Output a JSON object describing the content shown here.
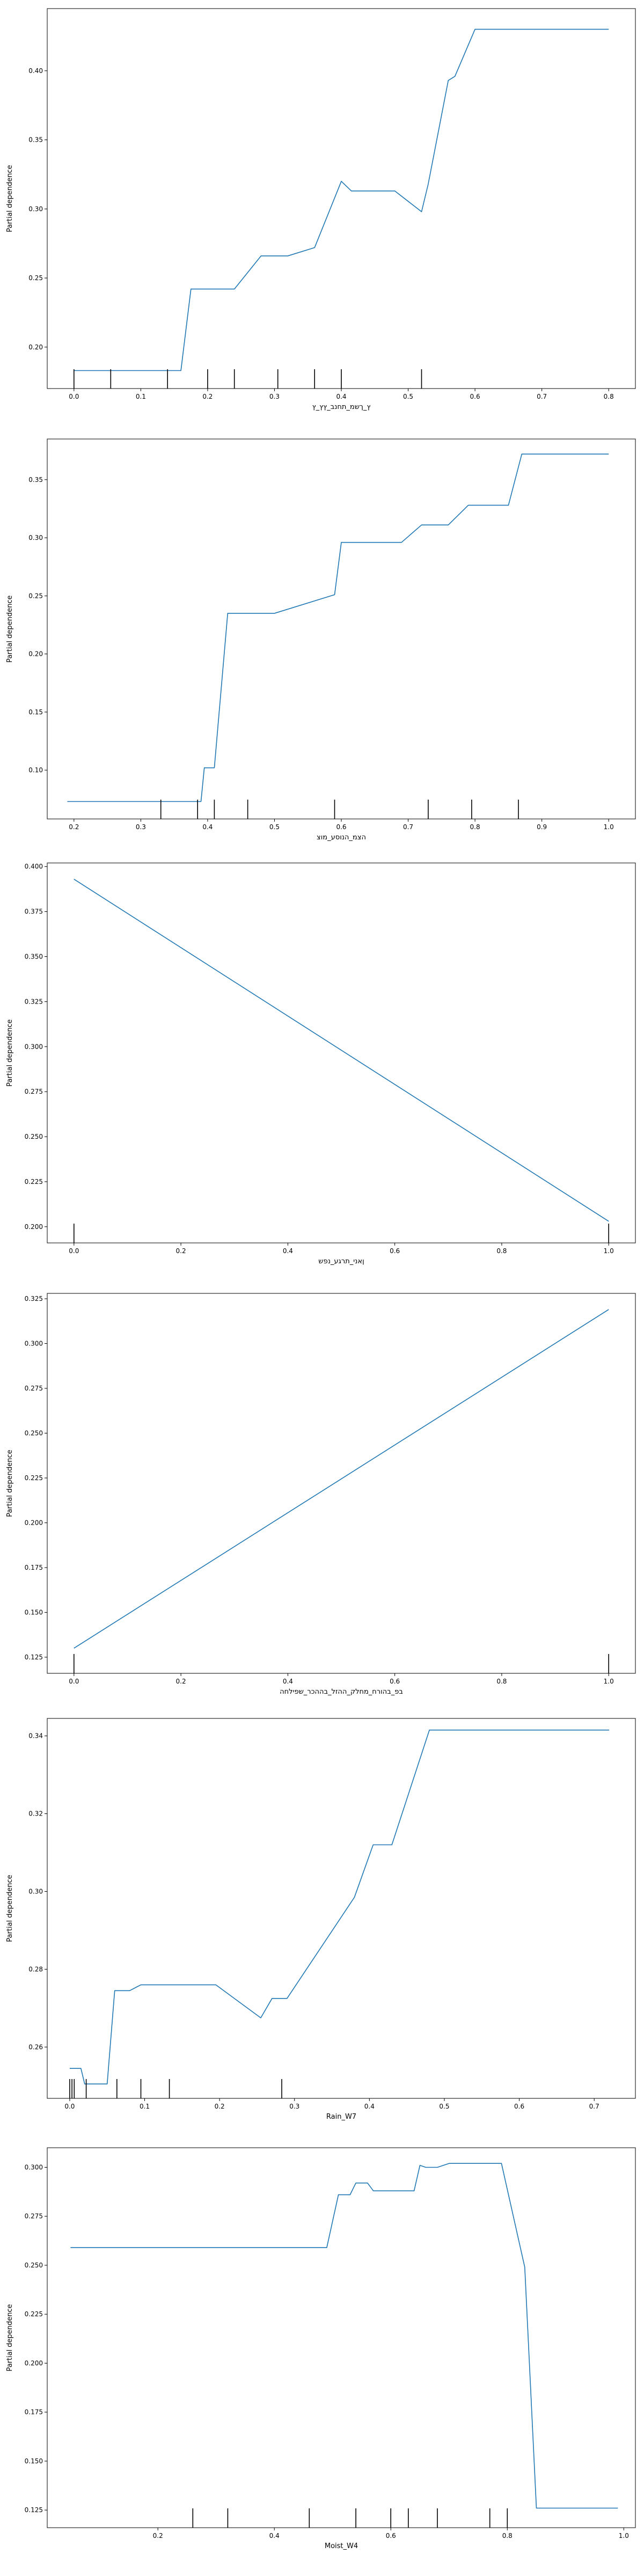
{
  "colors": {
    "line": "#1f77b4",
    "rug": "#000000",
    "frame": "#000000",
    "background": "#ffffff"
  },
  "chart_data": [
    {
      "type": "line",
      "xlabel": "ץ_ךשמ_תחנב_ץץ_ץ",
      "ylabel": "Partial dependence",
      "xlim": [
        -0.04,
        0.84
      ],
      "ylim": [
        0.17,
        0.445
      ],
      "xticks": [
        0.0,
        0.1,
        0.2,
        0.3,
        0.4,
        0.5,
        0.6,
        0.7,
        0.8
      ],
      "xtick_labels": [
        "0.0",
        "0.1",
        "0.2",
        "0.3",
        "0.4",
        "0.5",
        "0.6",
        "0.7",
        "0.8"
      ],
      "yticks": [
        0.2,
        0.25,
        0.3,
        0.35,
        0.4
      ],
      "ytick_labels": [
        "0.20",
        "0.25",
        "0.30",
        "0.35",
        "0.40"
      ],
      "x": [
        0.0,
        0.16,
        0.175,
        0.24,
        0.28,
        0.32,
        0.36,
        0.4,
        0.415,
        0.48,
        0.52,
        0.53,
        0.56,
        0.57,
        0.6,
        0.8
      ],
      "y": [
        0.183,
        0.183,
        0.242,
        0.242,
        0.266,
        0.266,
        0.272,
        0.32,
        0.313,
        0.313,
        0.298,
        0.318,
        0.393,
        0.396,
        0.43,
        0.43
      ],
      "rug": [
        0.0,
        0.055,
        0.14,
        0.2,
        0.24,
        0.305,
        0.36,
        0.4,
        0.52
      ]
    },
    {
      "type": "line",
      "xlabel": "הצמ_הנוסע_מוצ",
      "ylabel": "Partial dependence",
      "xlim": [
        0.16,
        1.04
      ],
      "ylim": [
        0.058,
        0.385
      ],
      "xticks": [
        0.2,
        0.3,
        0.4,
        0.5,
        0.6,
        0.7,
        0.8,
        0.9,
        1.0
      ],
      "xtick_labels": [
        "0.2",
        "0.3",
        "0.4",
        "0.5",
        "0.6",
        "0.7",
        "0.8",
        "0.9",
        "1.0"
      ],
      "yticks": [
        0.1,
        0.15,
        0.2,
        0.25,
        0.3,
        0.35
      ],
      "ytick_labels": [
        "0.10",
        "0.15",
        "0.20",
        "0.25",
        "0.30",
        "0.35"
      ],
      "x": [
        0.19,
        0.39,
        0.395,
        0.41,
        0.43,
        0.5,
        0.59,
        0.6,
        0.69,
        0.72,
        0.76,
        0.79,
        0.85,
        0.87,
        1.0
      ],
      "y": [
        0.073,
        0.073,
        0.102,
        0.102,
        0.235,
        0.235,
        0.251,
        0.296,
        0.296,
        0.311,
        0.311,
        0.328,
        0.328,
        0.372,
        0.372
      ],
      "rug": [
        0.33,
        0.385,
        0.41,
        0.46,
        0.59,
        0.73,
        0.795,
        0.865
      ]
    },
    {
      "type": "line",
      "xlabel": "ןאני_תרגע_נפש",
      "ylabel": "Partial dependence",
      "xlim": [
        -0.05,
        1.05
      ],
      "ylim": [
        0.191,
        0.402
      ],
      "xticks": [
        0.0,
        0.2,
        0.4,
        0.6,
        0.8,
        1.0
      ],
      "xtick_labels": [
        "0.0",
        "0.2",
        "0.4",
        "0.6",
        "0.8",
        "1.0"
      ],
      "yticks": [
        0.2,
        0.225,
        0.25,
        0.275,
        0.3,
        0.325,
        0.35,
        0.375,
        0.4
      ],
      "ytick_labels": [
        "0.200",
        "0.225",
        "0.250",
        "0.275",
        "0.300",
        "0.325",
        "0.350",
        "0.375",
        "0.400"
      ],
      "x": [
        0.0,
        1.0
      ],
      "y": [
        0.393,
        0.203
      ],
      "rug": [
        0.0,
        1.0
      ]
    },
    {
      "type": "line",
      "xlabel": "בפ_בהורח_מחלק_ההזל_בההכר_שפילחה",
      "ylabel": "Partial dependence",
      "xlim": [
        -0.05,
        1.05
      ],
      "ylim": [
        0.116,
        0.328
      ],
      "xticks": [
        0.0,
        0.2,
        0.4,
        0.6,
        0.8,
        1.0
      ],
      "xtick_labels": [
        "0.0",
        "0.2",
        "0.4",
        "0.6",
        "0.8",
        "1.0"
      ],
      "yticks": [
        0.125,
        0.15,
        0.175,
        0.2,
        0.225,
        0.25,
        0.275,
        0.3,
        0.325
      ],
      "ytick_labels": [
        "0.125",
        "0.150",
        "0.175",
        "0.200",
        "0.225",
        "0.250",
        "0.275",
        "0.300",
        "0.325"
      ],
      "x": [
        0.0,
        1.0
      ],
      "y": [
        0.13,
        0.319
      ],
      "rug": [
        0.0,
        1.0
      ]
    },
    {
      "type": "line",
      "xlabel": "Rain_W7",
      "ylabel": "Partial dependence",
      "xlim": [
        -0.03,
        0.755
      ],
      "ylim": [
        0.2468,
        0.3445
      ],
      "xticks": [
        0.0,
        0.1,
        0.2,
        0.3,
        0.4,
        0.5,
        0.6,
        0.7
      ],
      "xtick_labels": [
        "0.0",
        "0.1",
        "0.2",
        "0.3",
        "0.4",
        "0.5",
        "0.6",
        "0.7"
      ],
      "yticks": [
        0.26,
        0.28,
        0.3,
        0.32,
        0.34
      ],
      "ytick_labels": [
        "0.26",
        "0.28",
        "0.30",
        "0.32",
        "0.34"
      ],
      "x": [
        0.0,
        0.015,
        0.02,
        0.05,
        0.06,
        0.08,
        0.095,
        0.13,
        0.195,
        0.255,
        0.27,
        0.29,
        0.38,
        0.405,
        0.43,
        0.48,
        0.72
      ],
      "y": [
        0.2545,
        0.2545,
        0.2505,
        0.2505,
        0.2745,
        0.2745,
        0.276,
        0.276,
        0.276,
        0.2675,
        0.2725,
        0.2725,
        0.2985,
        0.312,
        0.312,
        0.3415,
        0.3415
      ],
      "rug": [
        0.0,
        0.003,
        0.006,
        0.022,
        0.063,
        0.095,
        0.133,
        0.283
      ]
    },
    {
      "type": "line",
      "xlabel": "Moist_W4",
      "ylabel": "Partial dependence",
      "xlim": [
        0.01,
        1.02
      ],
      "ylim": [
        0.116,
        0.31
      ],
      "xticks": [
        0.2,
        0.4,
        0.6,
        0.8,
        1.0
      ],
      "xtick_labels": [
        "0.2",
        "0.4",
        "0.6",
        "0.8",
        "1.0"
      ],
      "yticks": [
        0.125,
        0.15,
        0.175,
        0.2,
        0.225,
        0.25,
        0.275,
        0.3
      ],
      "ytick_labels": [
        "0.125",
        "0.150",
        "0.175",
        "0.200",
        "0.225",
        "0.250",
        "0.275",
        "0.300"
      ],
      "x": [
        0.05,
        0.49,
        0.51,
        0.53,
        0.54,
        0.56,
        0.57,
        0.59,
        0.64,
        0.65,
        0.66,
        0.68,
        0.7,
        0.79,
        0.83,
        0.85,
        0.99
      ],
      "y": [
        0.259,
        0.259,
        0.286,
        0.286,
        0.292,
        0.292,
        0.288,
        0.288,
        0.288,
        0.301,
        0.3,
        0.3,
        0.302,
        0.302,
        0.249,
        0.126,
        0.126
      ],
      "rug": [
        0.26,
        0.32,
        0.46,
        0.54,
        0.6,
        0.63,
        0.68,
        0.77,
        0.8
      ]
    }
  ]
}
